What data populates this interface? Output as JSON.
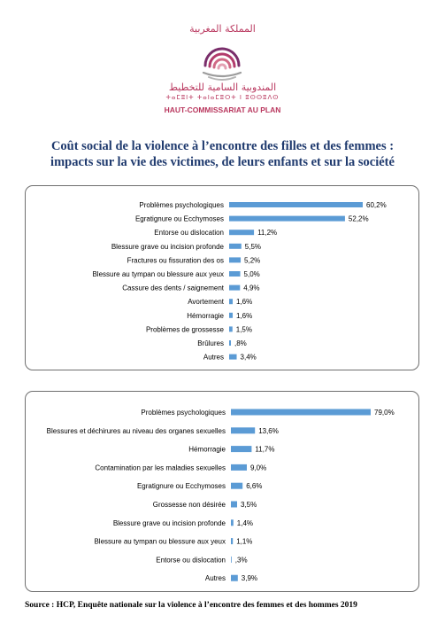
{
  "header": {
    "arabic_top": "المملكة المغربية",
    "arabic_institution": "المندوبية السامية للتخطيط",
    "tifinagh": "ⵜⴰⵎⵓⵏⵜ ⵜⴰⵏⴰⵎⵓⵔⵜ ⵏ ⵓⵙⵙⵓⴷⵙ",
    "institution": "HAUT-COMMISSARIAT AU PLAN"
  },
  "title_line1": "Coût social de la violence à l’encontre des filles et des femmes :",
  "title_line2": "impacts sur la vie des victimes, de leurs enfants et sur la société",
  "chart_data": [
    {
      "type": "bar",
      "orientation": "horizontal",
      "bar_color": "#5b9bd5",
      "categories": [
        "Problèmes psychologiques",
        "Egratignure ou Ecchymoses",
        "Entorse ou dislocation",
        "Blessure grave ou incision profonde",
        "Fractures ou fissuration des os",
        "Blessure au tympan ou blessure aux yeux",
        "Cassure des dents / saignement",
        "Avortement",
        "Hémorragie",
        "Problèmes de grossesse",
        "Brûlures",
        "Autres"
      ],
      "values": [
        60.2,
        52.2,
        11.2,
        5.5,
        5.2,
        5.0,
        4.9,
        1.6,
        1.6,
        1.5,
        0.8,
        3.4
      ],
      "value_labels": [
        "60,2%",
        "52,2%",
        "11,2%",
        "5,5%",
        "5,2%",
        "5,0%",
        "4,9%",
        "1,6%",
        "1,6%",
        "1,5%",
        ",8%",
        "3,4%"
      ],
      "xlim": [
        0,
        60.2
      ]
    },
    {
      "type": "bar",
      "orientation": "horizontal",
      "bar_color": "#5b9bd5",
      "categories": [
        "Problèmes psychologiques",
        "Blessures et déchirures au niveau des organes sexuelles",
        "Hémorragie",
        "Contamination par les maladies sexuelles",
        "Egratignure ou Ecchymoses",
        "Grossesse non désirée",
        "Blessure grave ou incision profonde",
        "Blessure au tympan ou blessure aux yeux",
        "Entorse ou dislocation",
        "Autres"
      ],
      "values": [
        79.0,
        13.6,
        11.7,
        9.0,
        6.6,
        3.5,
        1.4,
        1.1,
        0.3,
        3.9
      ],
      "value_labels": [
        "79,0%",
        "13,6%",
        "11,7%",
        "9,0%",
        "6,6%",
        "3,5%",
        "1,4%",
        "1,1%",
        ",3%",
        "3,9%"
      ],
      "xlim": [
        0,
        79.0
      ]
    }
  ],
  "source": "Source : HCP, Enquête nationale sur la violence à l’encontre des femmes et des hommes 2019"
}
